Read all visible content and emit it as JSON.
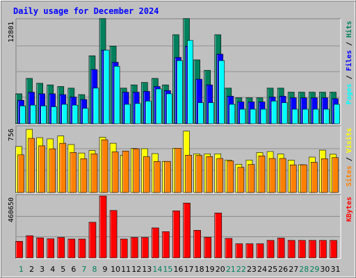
{
  "chart_data": {
    "type": "bar",
    "title": "Daily usage for December 2024",
    "colors": {
      "background": "#c0c0c0",
      "title": "#0000ff",
      "hits": "#00805c",
      "files": "#0000ff",
      "pages": "#00ffff",
      "visits": "#ffff00",
      "sites": "#ff8000",
      "kbytes": "#ff0000",
      "weekday_label": "#008000",
      "weekend_label": "#00805c",
      "axis_label": "#000000"
    },
    "categories": [
      "1",
      "2",
      "3",
      "4",
      "5",
      "6",
      "7",
      "8",
      "9",
      "10",
      "11",
      "12",
      "13",
      "14",
      "15",
      "16",
      "17",
      "18",
      "19",
      "20",
      "21",
      "22",
      "23",
      "24",
      "25",
      "26",
      "27",
      "28",
      "29",
      "30",
      "31"
    ],
    "weekend_days": [
      "1",
      "7",
      "8",
      "14",
      "15",
      "21",
      "22",
      "28",
      "29"
    ],
    "panels": [
      {
        "id": "hits-files-pages",
        "ymax_label": "12801",
        "ylim": [
          0,
          12801
        ],
        "legend": [
          "Pages",
          "Files",
          "Hits"
        ],
        "series": [
          {
            "name": "Hits",
            "color": "#00805c",
            "values": [
              3700,
              5600,
              5000,
              4800,
              4600,
              4400,
              3600,
              8400,
              13000,
              9600,
              4400,
              4800,
              5100,
              5600,
              4800,
              11000,
              13000,
              7900,
              6600,
              11000,
              4400,
              3200,
              3200,
              3200,
              4400,
              4400,
              3900,
              3900,
              3900,
              3900,
              3900
            ]
          },
          {
            "name": "Files",
            "color": "#0000ff",
            "values": [
              2900,
              3900,
              3700,
              3700,
              3600,
              3300,
              3000,
              6700,
              9100,
              7600,
              3900,
              3900,
              4000,
              4600,
              4100,
              8200,
              9600,
              5500,
              4800,
              8600,
              3400,
              2700,
              2700,
              2700,
              3300,
              3400,
              3200,
              3200,
              3200,
              3200,
              3100
            ]
          },
          {
            "name": "Pages",
            "color": "#00ffff",
            "values": [
              2200,
              2300,
              2200,
              2100,
              2400,
              2300,
              1900,
              4400,
              9100,
              7100,
              2400,
              2500,
              2800,
              4300,
              3700,
              7800,
              10300,
              2600,
              2600,
              7800,
              2400,
              1800,
              1800,
              1800,
              2800,
              2600,
              1800,
              1800,
              1800,
              1800,
              2400
            ]
          }
        ]
      },
      {
        "id": "visits-sites",
        "ymax_label": "756",
        "ylim": [
          0,
          756
        ],
        "legend": [
          "Sites",
          "Visits"
        ],
        "series": [
          {
            "name": "Visits",
            "color": "#ffff00",
            "values": [
              532,
              731,
              635,
              620,
              655,
              555,
              457,
              487,
              640,
              570,
              430,
              510,
              507,
              450,
              360,
              512,
              710,
              447,
              447,
              447,
              376,
              326,
              376,
              463,
              474,
              445,
              374,
              321,
              410,
              490,
              443
            ]
          },
          {
            "name": "Sites",
            "color": "#ff8000",
            "values": [
              436,
              627,
              540,
              506,
              570,
              463,
              391,
              448,
              610,
              471,
              480,
              506,
              414,
              360,
              360,
              512,
              432,
              430,
              416,
              394,
              366,
              291,
              324,
              424,
              394,
              394,
              320,
              321,
              350,
              391,
              404
            ]
          }
        ]
      },
      {
        "id": "kbytes",
        "ymax_label": "460650",
        "ylim": [
          0,
          460650
        ],
        "legend": [
          "KBytes"
        ],
        "series": [
          {
            "name": "KBytes",
            "color": "#ff0000",
            "values": [
              123000,
              165000,
              149000,
              142000,
              152000,
              140000,
              140000,
              265000,
              460650,
              353000,
              140000,
              152000,
              152000,
              223000,
              195000,
              350000,
              408000,
              205000,
              153000,
              334000,
              145000,
              105000,
              105000,
              105000,
              130000,
              147000,
              130000,
              130000,
              130000,
              130000,
              130000
            ]
          }
        ]
      }
    ]
  }
}
